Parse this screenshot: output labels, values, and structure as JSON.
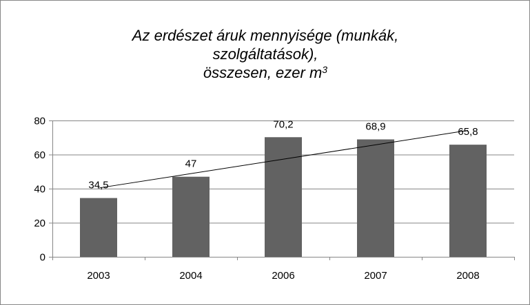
{
  "chart_data": {
    "type": "bar",
    "title_lines": [
      "Az erdészet áruk mennyisége (munkák,",
      "szolgáltatások),",
      "összesen, ezer m"
    ],
    "title_superscript": "3",
    "categories": [
      "2003",
      "2004",
      "2006",
      "2007",
      "2008"
    ],
    "values": [
      34.5,
      47,
      70.2,
      68.9,
      65.8
    ],
    "value_labels": [
      "34,5",
      "47",
      "70,2",
      "68,9",
      "65,8"
    ],
    "ylim": [
      0,
      80
    ],
    "yticks": [
      0,
      20,
      40,
      60,
      80
    ],
    "ytick_labels": [
      "0",
      "20",
      "40",
      "60",
      "80"
    ],
    "grid": true,
    "trendline": "linear",
    "legend": "none",
    "bar_color": "#626262",
    "grid_color": "#868686"
  }
}
